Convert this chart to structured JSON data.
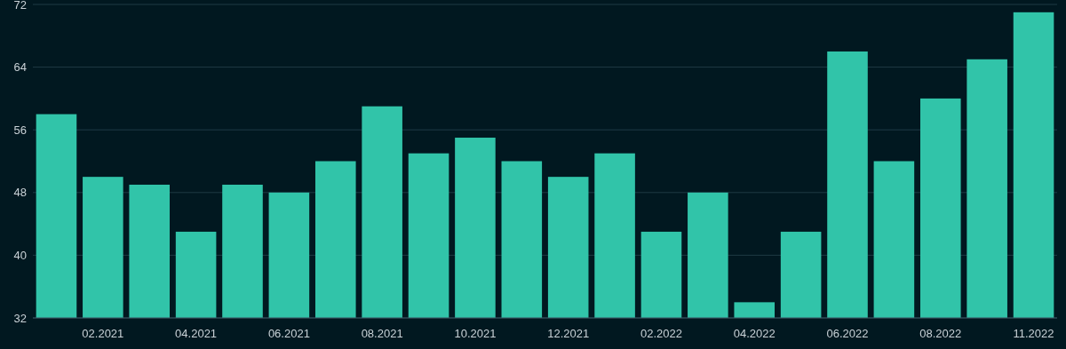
{
  "chart_data": {
    "type": "bar",
    "categories": [
      null,
      "02.2021",
      null,
      "04.2021",
      null,
      "06.2021",
      null,
      "08.2021",
      null,
      "10.2021",
      null,
      "12.2021",
      null,
      "02.2022",
      null,
      "04.2022",
      null,
      "06.2022",
      null,
      "08.2022",
      null,
      "11.2022"
    ],
    "values": [
      58,
      50,
      49,
      43,
      49,
      48,
      52,
      59,
      53,
      55,
      52,
      50,
      53,
      43,
      48,
      34,
      43,
      66,
      52,
      60,
      65,
      71
    ],
    "color": "#31c4a9",
    "ylim": [
      32,
      72
    ],
    "yticks": [
      32,
      40,
      48,
      56,
      64,
      72
    ],
    "grid": "y"
  }
}
